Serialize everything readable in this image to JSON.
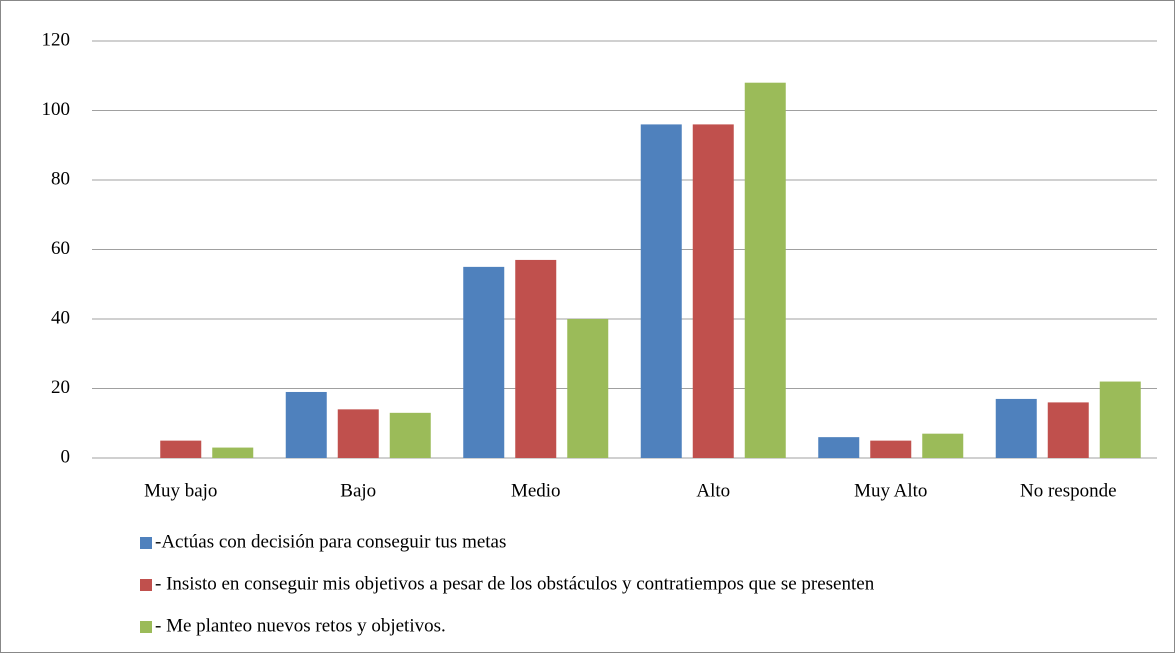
{
  "chart_data": {
    "type": "bar",
    "categories": [
      "Muy bajo",
      "Bajo",
      "Medio",
      "Alto",
      "Muy Alto",
      "No responde"
    ],
    "series": [
      {
        "name": "-Actúas con decisión para conseguir tus metas",
        "color": "#4f81bd",
        "values": [
          0,
          19,
          55,
          96,
          6,
          17
        ]
      },
      {
        "name": "- Insisto en conseguir mis objetivos a pesar de los obstáculos y contratiempos que se presenten",
        "color": "#c0504d",
        "values": [
          5,
          14,
          57,
          96,
          5,
          16
        ]
      },
      {
        "name": "- Me planteo nuevos retos y objetivos.",
        "color": "#9bbb59",
        "values": [
          3,
          13,
          40,
          108,
          7,
          22
        ]
      }
    ],
    "ylim": [
      0,
      120
    ],
    "yticks": [
      0,
      20,
      40,
      60,
      80,
      100,
      120
    ],
    "grid": true,
    "legend": "bottom"
  }
}
